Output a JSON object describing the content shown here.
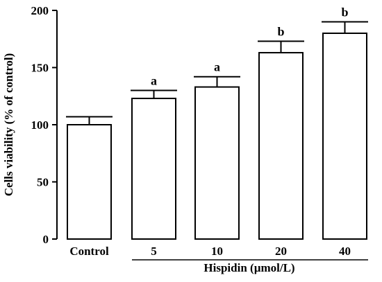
{
  "chart_data": {
    "type": "bar",
    "title": "",
    "ylabel": "Cells viability (% of control)",
    "xlabel": "Hispidin (µmol/L)",
    "ylim": [
      0,
      200
    ],
    "yticks": [
      0,
      50,
      100,
      150,
      200
    ],
    "categories": [
      "Control",
      "5",
      "10",
      "20",
      "40"
    ],
    "values": [
      100,
      123,
      133,
      163,
      180
    ],
    "errors": [
      7,
      7,
      9,
      10,
      10
    ],
    "significance": [
      "",
      "a",
      "a",
      "b",
      "b"
    ],
    "bar_fill": "#ffffff",
    "bar_stroke": "#000000",
    "grid": false
  }
}
